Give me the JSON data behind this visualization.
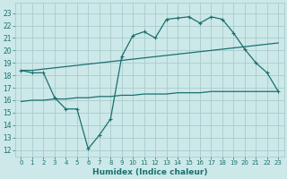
{
  "xlabel": "Humidex (Indice chaleur)",
  "bg_color": "#cce8e8",
  "grid_color": "#aacccc",
  "line_color": "#1a7070",
  "xlim": [
    -0.5,
    23.5
  ],
  "ylim": [
    11.5,
    23.8
  ],
  "yticks": [
    12,
    13,
    14,
    15,
    16,
    17,
    18,
    19,
    20,
    21,
    22,
    23
  ],
  "xticks": [
    0,
    1,
    2,
    3,
    4,
    5,
    6,
    7,
    8,
    9,
    10,
    11,
    12,
    13,
    14,
    15,
    16,
    17,
    18,
    19,
    20,
    21,
    22,
    23
  ],
  "line1_x": [
    0,
    1,
    2,
    3,
    4,
    5,
    6,
    7,
    8,
    9,
    10,
    11,
    12,
    13,
    14,
    15,
    16,
    17,
    18,
    19,
    20,
    21,
    22,
    23
  ],
  "line1_y": [
    18.4,
    18.2,
    18.2,
    16.2,
    15.3,
    15.3,
    12.1,
    13.2,
    14.5,
    19.5,
    21.2,
    21.5,
    21.0,
    22.5,
    22.6,
    22.7,
    22.2,
    22.7,
    22.5,
    21.4,
    20.1,
    19.0,
    18.2,
    16.7
  ],
  "line2_x": [
    0,
    1,
    2,
    3,
    4,
    5,
    6,
    7,
    8,
    9,
    10,
    11,
    12,
    13,
    14,
    15,
    16,
    17,
    18,
    19,
    20,
    21,
    22,
    23
  ],
  "line2_y": [
    18.4,
    18.4,
    18.5,
    18.6,
    18.7,
    18.8,
    18.9,
    19.0,
    19.1,
    19.2,
    19.3,
    19.4,
    19.5,
    19.6,
    19.7,
    19.8,
    19.9,
    20.0,
    20.1,
    20.2,
    20.3,
    20.4,
    20.5,
    20.6
  ],
  "line3_x": [
    0,
    1,
    2,
    3,
    4,
    5,
    6,
    7,
    8,
    9,
    10,
    11,
    12,
    13,
    14,
    15,
    16,
    17,
    18,
    19,
    20,
    21,
    22,
    23
  ],
  "line3_y": [
    15.9,
    16.0,
    16.0,
    16.1,
    16.1,
    16.2,
    16.2,
    16.3,
    16.3,
    16.4,
    16.4,
    16.5,
    16.5,
    16.5,
    16.6,
    16.6,
    16.6,
    16.7,
    16.7,
    16.7,
    16.7,
    16.7,
    16.7,
    16.7
  ]
}
